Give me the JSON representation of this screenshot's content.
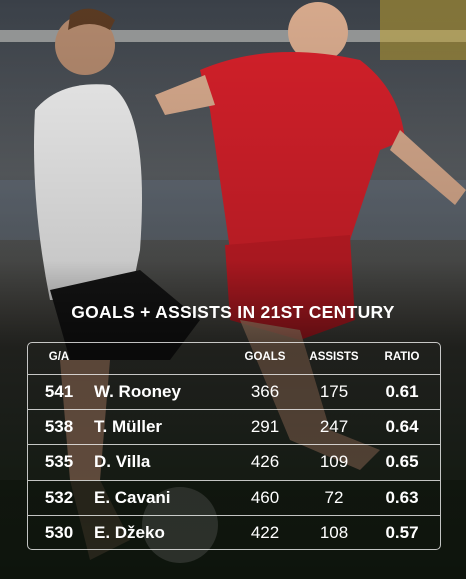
{
  "title": "GOALS + ASSISTS IN 21ST CENTURY",
  "table": {
    "header": [
      "G/A",
      "GOALS",
      "ASSISTS",
      "RATIO"
    ],
    "rows": [
      [
        541,
        "W. Rooney",
        366,
        175,
        0.61
      ],
      [
        538,
        "T. Müller",
        291,
        247,
        0.64
      ],
      [
        535,
        "D. Villa",
        426,
        109,
        0.65
      ],
      [
        532,
        "E. Cavani",
        460,
        72,
        0.63
      ],
      [
        530,
        "E. Džeko",
        422,
        108,
        0.57
      ]
    ]
  }
}
